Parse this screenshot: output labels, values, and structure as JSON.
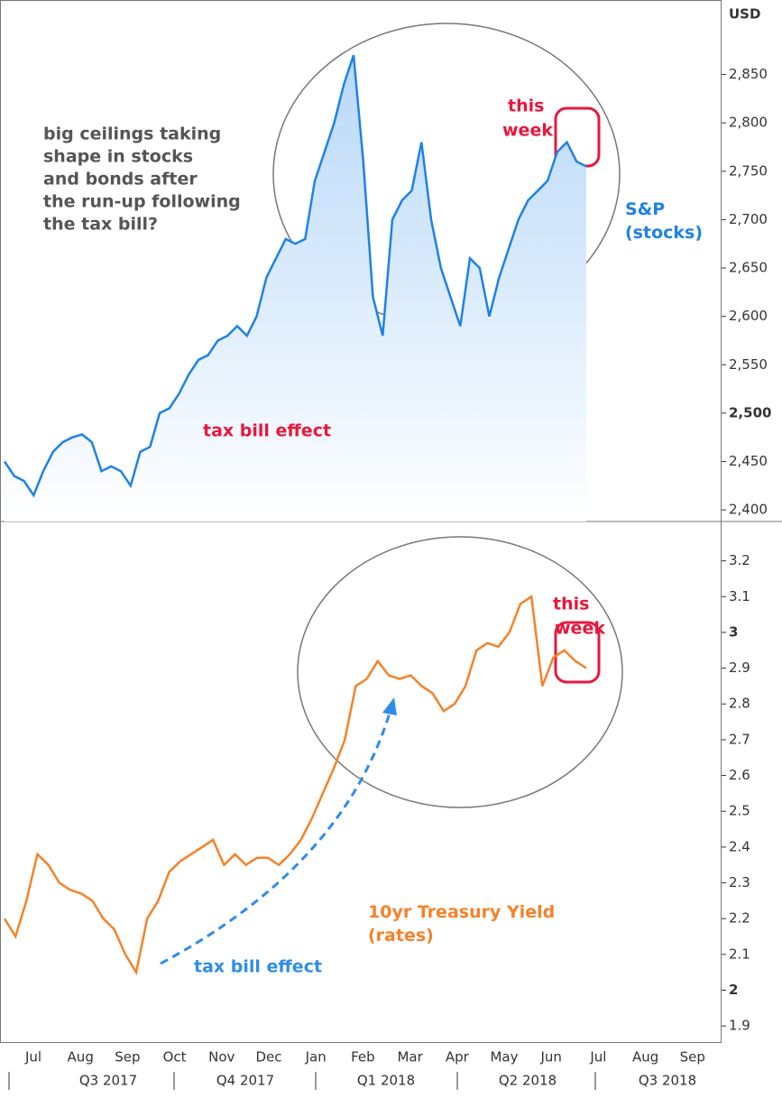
{
  "chart_data": [
    {
      "type": "area-line",
      "ylabel": "USD",
      "series_label": "S&P\n(stocks)",
      "color": "#1e82e6",
      "annotations": [
        "big ceilings taking",
        "shape in stocks",
        "and bonds after",
        "the run-up following",
        "the tax bill?"
      ],
      "arrow_label": "tax bill effect",
      "highlight_label": [
        "this",
        "week"
      ],
      "values": [
        2450,
        2435,
        2430,
        2415,
        2440,
        2460,
        2470,
        2475,
        2478,
        2470,
        2440,
        2445,
        2440,
        2425,
        2460,
        2465,
        2500,
        2505,
        2520,
        2540,
        2555,
        2560,
        2575,
        2580,
        2590,
        2580,
        2600,
        2640,
        2660,
        2680,
        2675,
        2680,
        2740,
        2770,
        2800,
        2840,
        2870,
        2760,
        2620,
        2580,
        2700,
        2720,
        2730,
        2780,
        2700,
        2650,
        2620,
        2590,
        2660,
        2650,
        2600,
        2640,
        2670,
        2700,
        2720,
        2730,
        2740,
        2770,
        2780,
        2760,
        2755
      ],
      "ylim": [
        2388,
        2927
      ],
      "yticks": [
        {
          "value": 2400,
          "label": "2,400"
        },
        {
          "value": 2450,
          "label": "2,450"
        },
        {
          "value": 2500,
          "label": "2,500"
        },
        {
          "value": 2550,
          "label": "2,550"
        },
        {
          "value": 2600,
          "label": "2,600"
        },
        {
          "value": 2650,
          "label": "2,650"
        },
        {
          "value": 2700,
          "label": "2,700"
        },
        {
          "value": 2750,
          "label": "2,750"
        },
        {
          "value": 2800,
          "label": "2,800"
        },
        {
          "value": 2850,
          "label": "2,850"
        }
      ]
    },
    {
      "type": "line",
      "series_label": "10yr Treasury Yield\n(rates)",
      "color": "#f5822a",
      "arrow_label": "tax bill effect",
      "highlight_label": [
        "this",
        "week"
      ],
      "values": [
        2.2,
        2.15,
        2.25,
        2.38,
        2.35,
        2.3,
        2.28,
        2.27,
        2.25,
        2.2,
        2.17,
        2.1,
        2.05,
        2.2,
        2.25,
        2.33,
        2.36,
        2.38,
        2.4,
        2.42,
        2.35,
        2.38,
        2.35,
        2.37,
        2.37,
        2.35,
        2.38,
        2.42,
        2.48,
        2.55,
        2.62,
        2.7,
        2.85,
        2.87,
        2.92,
        2.88,
        2.87,
        2.88,
        2.85,
        2.83,
        2.78,
        2.8,
        2.85,
        2.95,
        2.97,
        2.96,
        3.0,
        3.08,
        3.1,
        2.85,
        2.93,
        2.95,
        2.92,
        2.9
      ],
      "ylim": [
        1.855,
        3.31
      ],
      "yticks": [
        1.9,
        2,
        2.1,
        2.2,
        2.3,
        2.4,
        2.5,
        2.6,
        2.7,
        2.8,
        2.9,
        3,
        3.1,
        3.2
      ],
      "months": [
        "Jul",
        "Aug",
        "Sep",
        "Oct",
        "Nov",
        "Dec",
        "Jan",
        "Feb",
        "Mar",
        "Apr",
        "May",
        "Jun",
        "Jul",
        "Aug",
        "Sep"
      ],
      "quarters": [
        "Q3 2017",
        "Q4 2017",
        "Q1 2018",
        "Q2 2018",
        "Q3 2018"
      ]
    }
  ]
}
